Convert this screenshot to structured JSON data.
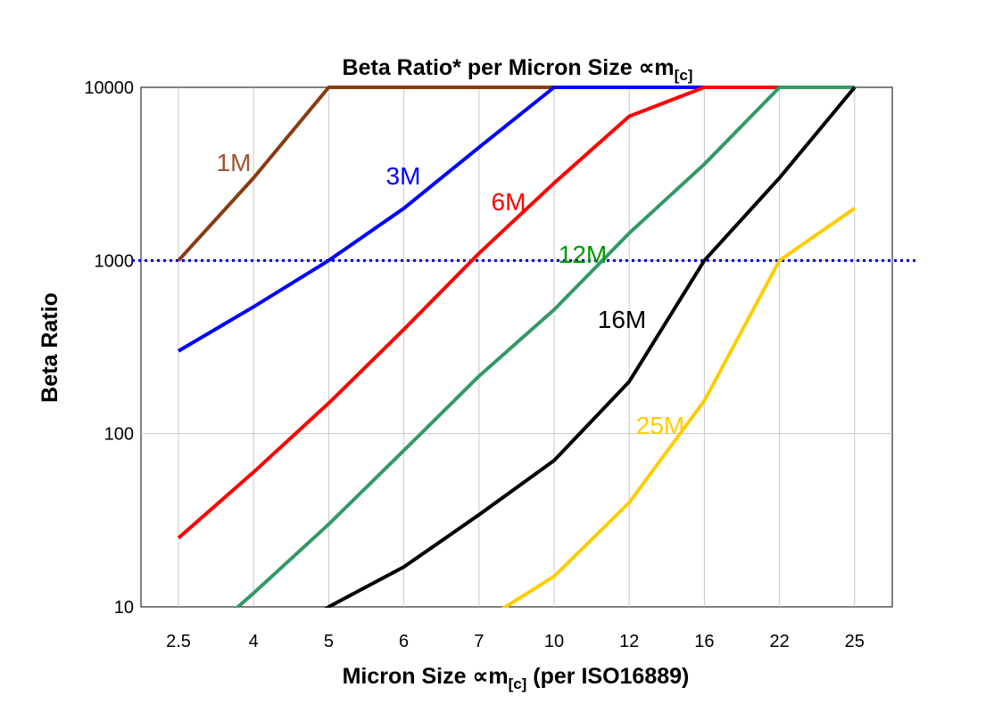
{
  "chart_data": {
    "type": "line",
    "title": "Beta Ratio* per Micron Size ∝m[c]",
    "title_main": "Beta Ratio* per Micron Size ∝m",
    "title_sub": "[c]",
    "xlabel_main": "Micron Size ∝m",
    "xlabel_sub": "[c]",
    "xlabel_tail": " (per ISO16889)",
    "ylabel": "Beta Ratio",
    "y_scale": "log",
    "ylim": [
      10,
      10000
    ],
    "y_ticks": [
      "10",
      "100",
      "1000",
      "10000"
    ],
    "categories": [
      "2.5",
      "4",
      "5",
      "6",
      "7",
      "10",
      "12",
      "16",
      "22",
      "25"
    ],
    "grid": true,
    "reference_line": {
      "value": 1000,
      "style": "dotted",
      "color": "#0000CC"
    },
    "series": [
      {
        "name": "1M",
        "color": "#8B3A0F",
        "label_color": "#A0522D",
        "values": [
          1000,
          3000,
          10000,
          10000,
          10000,
          10000,
          null,
          null,
          null,
          null
        ]
      },
      {
        "name": "3M",
        "color": "#0000FF",
        "label_color": "#0000FF",
        "values": [
          300,
          540,
          1000,
          2000,
          4500,
          10000,
          10000,
          10000,
          10000,
          null
        ]
      },
      {
        "name": "6M",
        "color": "#FF0000",
        "label_color": "#FF0000",
        "values": [
          25,
          60,
          150,
          400,
          1100,
          2800,
          6800,
          10000,
          10000,
          null
        ]
      },
      {
        "name": "12M",
        "color": "#339966",
        "label_color": "#009900",
        "values": [
          5,
          12,
          30,
          80,
          215,
          520,
          1440,
          3600,
          10000,
          10000
        ]
      },
      {
        "name": "16M",
        "color": "#000000",
        "label_color": "#000000",
        "values": [
          null,
          5,
          10,
          17,
          34,
          70,
          200,
          1000,
          3000,
          10000
        ]
      },
      {
        "name": "25M",
        "color": "#FFCC00",
        "label_color": "#FFCC00",
        "values": [
          null,
          null,
          null,
          null,
          8,
          15,
          40,
          155,
          1000,
          2000
        ]
      }
    ]
  }
}
